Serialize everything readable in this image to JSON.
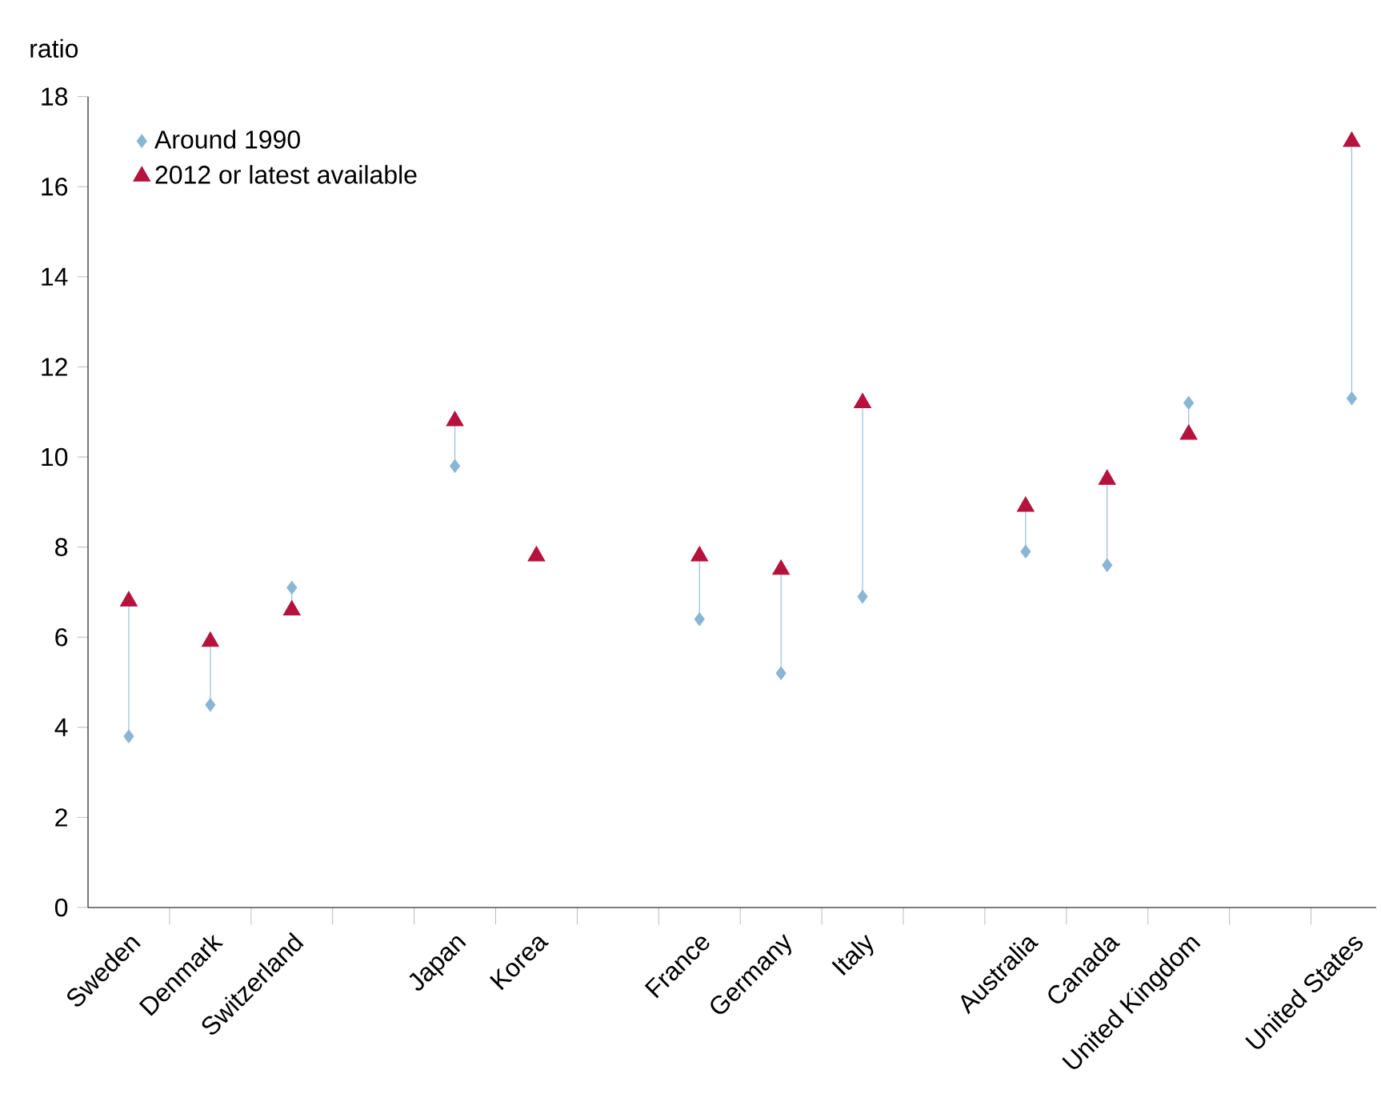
{
  "chart_data": {
    "type": "scatter",
    "ylabel": "ratio",
    "categories": [
      "Sweden",
      "Denmark",
      "Switzerland",
      null,
      "Japan",
      "Korea",
      null,
      "France",
      "Germany",
      "Italy",
      null,
      "Australia",
      "Canada",
      "United Kingdom",
      null,
      "United States"
    ],
    "series": [
      {
        "name": "Around 1990",
        "color": "#8ab6d6",
        "marker": "diamond",
        "values": [
          3.8,
          4.5,
          7.1,
          null,
          9.8,
          null,
          null,
          6.4,
          5.2,
          6.9,
          null,
          7.9,
          7.6,
          11.2,
          null,
          11.3
        ]
      },
      {
        "name": "2012 or latest available",
        "color": "#b5123e",
        "marker": "triangle",
        "values": [
          6.8,
          5.9,
          6.6,
          null,
          10.8,
          7.8,
          null,
          7.8,
          7.5,
          11.2,
          null,
          8.9,
          9.5,
          10.5,
          null,
          17.0
        ]
      }
    ],
    "ylim": [
      0,
      18
    ],
    "yticks": [
      0,
      2,
      4,
      6,
      8,
      10,
      12,
      14,
      16,
      18
    ],
    "grid": false,
    "legend": "top left"
  }
}
